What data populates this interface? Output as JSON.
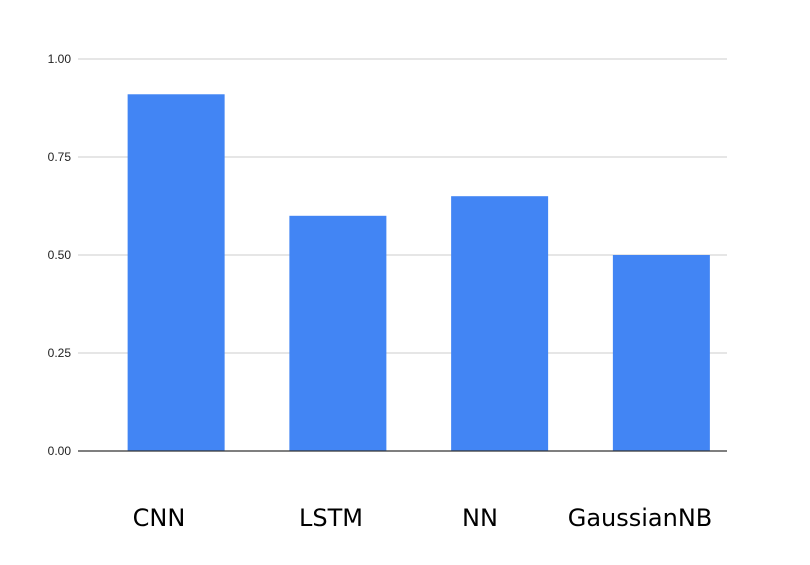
{
  "colors": {
    "bar": "#4285f4",
    "grid": "#cccccc",
    "baseline": "#333333"
  },
  "chart_data": {
    "type": "bar",
    "title": "",
    "xlabel": "",
    "ylabel": "",
    "categories": [
      "CNN",
      "LSTM",
      "NN",
      "GaussianNB"
    ],
    "values": [
      0.91,
      0.6,
      0.65,
      0.5
    ],
    "ylim": [
      0,
      1
    ],
    "yticks": [
      "0.00",
      "0.25",
      "0.50",
      "0.75",
      "1.00"
    ],
    "grid": true,
    "legend": "none"
  }
}
